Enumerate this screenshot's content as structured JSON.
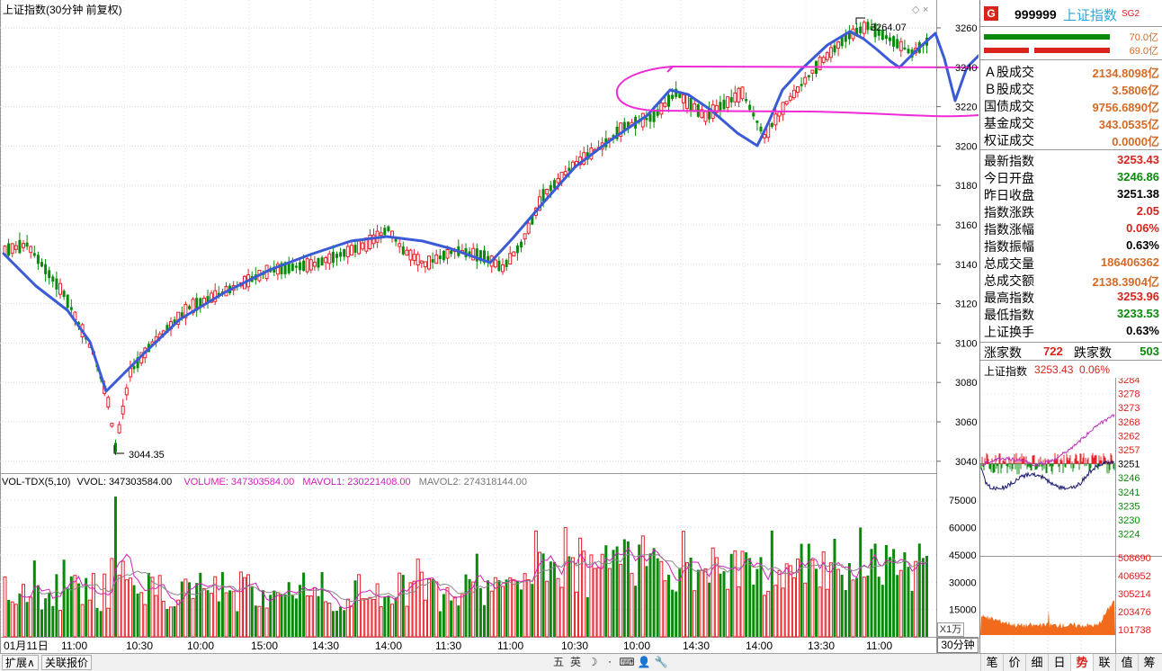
{
  "chart": {
    "title": "上证指数(30分钟 前复权)",
    "high_label": "3264.07",
    "low_label": "3044.35",
    "y_axis_ticks": [
      "3260",
      "3240",
      "3220",
      "3200",
      "3180",
      "3160",
      "3140",
      "3120",
      "3100",
      "3080",
      "3060",
      "3040"
    ],
    "x_axis_ticks": [
      "01月11日",
      "11:00",
      "10:30",
      "10:00",
      "15:00",
      "14:30",
      "14:00",
      "11:30",
      "11:00",
      "10:30",
      "10:00",
      "14:30",
      "14:00",
      "13:30",
      "11:00"
    ],
    "period_label": "30分钟",
    "colors": {
      "up": "#e8202a",
      "down": "#0a8a0a",
      "annotation_blue": "#3b5bd6",
      "annotation_magenta": "#ee2bd6"
    }
  },
  "volume": {
    "header_name": "VOL-TDX(5,10)",
    "header_vvol": "VVOL: 347303584.00",
    "header_volume": "VOLUME: 347303584.00",
    "header_mavol1": "MAVOL1: 230221408.00",
    "header_mavol2": "MAVOL2: 274318144.00",
    "y_axis_ticks": [
      "75000",
      "60000",
      "45000",
      "30000",
      "15000"
    ],
    "unit_label": "X1万"
  },
  "quote": {
    "g_badge": "G",
    "code": "999999",
    "name": "上证指数",
    "tag": "SG2",
    "bar1_value": "70.0亿",
    "bar2_value": "69.0亿",
    "rows1": [
      {
        "label": "Ａ股成交",
        "value": "2134.8098亿"
      },
      {
        "label": "Ｂ股成交",
        "value": "3.5806亿"
      },
      {
        "label": "国债成交",
        "value": "9756.6890亿"
      },
      {
        "label": "基金成交",
        "value": "343.0535亿"
      },
      {
        "label": "权证成交",
        "value": "0.0000亿"
      }
    ],
    "rows2": [
      {
        "label": "最新指数",
        "value": "3253.43",
        "color": "#d8241c"
      },
      {
        "label": "今日开盘",
        "value": "3246.86",
        "color": "#0a8a0a"
      },
      {
        "label": "昨日收盘",
        "value": "3251.38",
        "color": "#000000"
      },
      {
        "label": "指数涨跌",
        "value": "2.05",
        "color": "#d8241c"
      },
      {
        "label": "指数涨幅",
        "value": "0.06%",
        "color": "#d8241c"
      },
      {
        "label": "指数振幅",
        "value": "0.63%",
        "color": "#000000"
      },
      {
        "label": "总成交量",
        "value": "186406362",
        "color": "#d36b28"
      },
      {
        "label": "总成交额",
        "value": "2138.3904亿",
        "color": "#d36b28"
      },
      {
        "label": "最高指数",
        "value": "3253.96",
        "color": "#d8241c"
      },
      {
        "label": "最低指数",
        "value": "3233.53",
        "color": "#0a8a0a"
      },
      {
        "label": "上证换手",
        "value": "0.63%",
        "color": "#000000"
      }
    ],
    "rise_label": "涨家数",
    "rise_value": "722",
    "fall_label": "跌家数",
    "fall_value": "503",
    "mini_title": "上证指数",
    "mini_price": "3253.43",
    "mini_pct": "0.06%",
    "mini_price_ticks": [
      "3284",
      "3278",
      "3273",
      "3268",
      "3262",
      "3257",
      "3251",
      "3246",
      "3241",
      "3235",
      "3230",
      "3224"
    ],
    "mini_vol_ticks": [
      "508690",
      "406952",
      "305214",
      "203476",
      "101738"
    ]
  },
  "bottom": {
    "btn_expand": "扩展∧",
    "btn_related": "关联报价",
    "ime": [
      "五",
      "英",
      "☽",
      "⸱",
      "⌨",
      "👤",
      "🔧"
    ],
    "tabs": [
      {
        "label": "笔",
        "active": false
      },
      {
        "label": "价",
        "active": false
      },
      {
        "label": "细",
        "active": false
      },
      {
        "label": "日",
        "active": false
      },
      {
        "label": "势",
        "active": true
      },
      {
        "label": "联",
        "active": false
      },
      {
        "label": "值",
        "active": false
      },
      {
        "label": "筹",
        "active": false
      }
    ]
  }
}
